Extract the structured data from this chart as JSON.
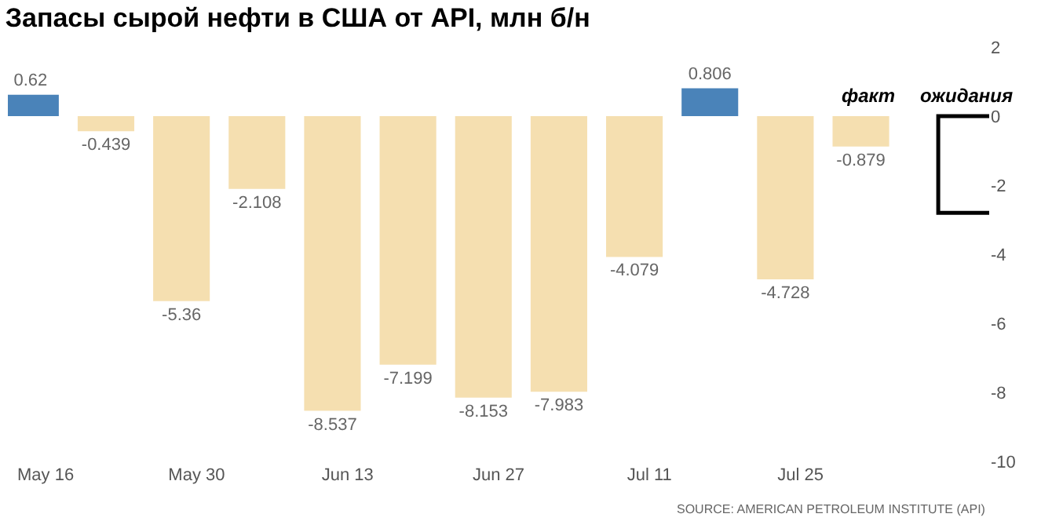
{
  "chart_data": {
    "type": "bar",
    "title": "Запасы сырой нефти в США от API, млн б/н",
    "categories": [
      "May 16",
      null,
      "May 30",
      null,
      "Jun 13",
      null,
      "Jun 27",
      null,
      "Jul 11",
      null,
      "Jul 25",
      null,
      null
    ],
    "series": [
      {
        "name": "факт",
        "colors": [
          "#4a83b9",
          "#f5dfb0",
          "#f5dfb0",
          "#f5dfb0",
          "#f5dfb0",
          "#f5dfb0",
          "#f5dfb0",
          "#f5dfb0",
          "#f5dfb0",
          "#4a83b9",
          "#f5dfb0",
          "#f5dfb0",
          null
        ],
        "values": [
          0.62,
          -0.439,
          -5.36,
          -2.108,
          -8.537,
          -7.199,
          -8.153,
          -7.983,
          -4.079,
          0.806,
          -4.728,
          -0.879,
          null
        ],
        "value_labels": [
          "0.62",
          "-0.439",
          "-5.36",
          "-2.108",
          "-8.537",
          "-7.199",
          "-8.153",
          "-7.983",
          "-4.079",
          "0.806",
          "-4.728",
          "-0.879",
          null
        ]
      },
      {
        "name": "ожидания",
        "color": "#000000",
        "values": [
          null,
          null,
          null,
          null,
          null,
          null,
          null,
          null,
          null,
          null,
          null,
          null,
          -2.8
        ]
      }
    ],
    "ylim": [
      -10,
      2
    ],
    "yticks": [
      -10,
      -8,
      -6,
      -4,
      -2,
      0,
      2
    ],
    "legend": false,
    "annotations": [
      "SOURCE: AMERICAN PETROLEUM INSTITUTE (API)"
    ]
  }
}
